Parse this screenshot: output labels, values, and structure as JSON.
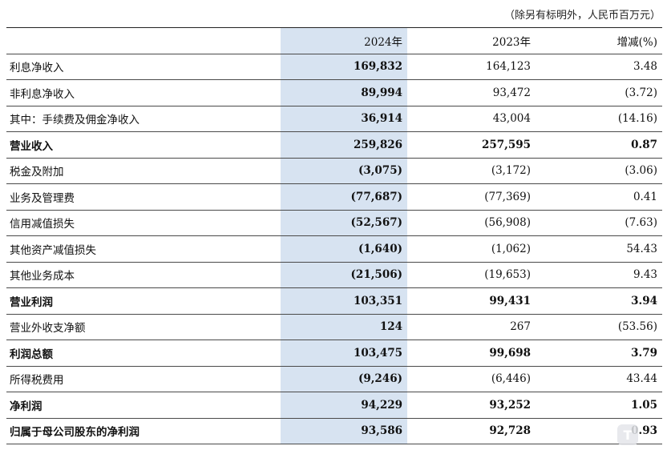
{
  "unit_note": "（除另有标明外，人民币百万元）",
  "headers": {
    "label": "",
    "y2024": "2024年",
    "y2023": "2023年",
    "change": "增减(%)"
  },
  "rows": [
    {
      "label": "利息净收入",
      "y2024": "169,832",
      "y2023": "164,123",
      "change": "3.48",
      "bold": false
    },
    {
      "label": "非利息净收入",
      "y2024": "89,994",
      "y2023": "93,472",
      "change": "(3.72)",
      "bold": false
    },
    {
      "label": "其中：手续费及佣金净收入",
      "y2024": "36,914",
      "y2023": "43,004",
      "change": "(14.16)",
      "bold": false
    },
    {
      "label": "营业收入",
      "y2024": "259,826",
      "y2023": "257,595",
      "change": "0.87",
      "bold": true
    },
    {
      "label": "税金及附加",
      "y2024": "(3,075)",
      "y2023": "(3,172)",
      "change": "(3.06)",
      "bold": false
    },
    {
      "label": "业务及管理费",
      "y2024": "(77,687)",
      "y2023": "(77,369)",
      "change": "0.41",
      "bold": false
    },
    {
      "label": "信用减值损失",
      "y2024": "(52,567)",
      "y2023": "(56,908)",
      "change": "(7.63)",
      "bold": false
    },
    {
      "label": "其他资产减值损失",
      "y2024": "(1,640)",
      "y2023": "(1,062)",
      "change": "54.43",
      "bold": false
    },
    {
      "label": "其他业务成本",
      "y2024": "(21,506)",
      "y2023": "(19,653)",
      "change": "9.43",
      "bold": false
    },
    {
      "label": "营业利润",
      "y2024": "103,351",
      "y2023": "99,431",
      "change": "3.94",
      "bold": true
    },
    {
      "label": "营业外收支净额",
      "y2024": "124",
      "y2023": "267",
      "change": "(53.56)",
      "bold": false
    },
    {
      "label": "利润总额",
      "y2024": "103,475",
      "y2023": "99,698",
      "change": "3.79",
      "bold": true
    },
    {
      "label": "所得税费用",
      "y2024": "(9,246)",
      "y2023": "(6,446)",
      "change": "43.44",
      "bold": false
    },
    {
      "label": "净利润",
      "y2024": "94,229",
      "y2023": "93,252",
      "change": "1.05",
      "bold": true
    },
    {
      "label": "归属于母公司股东的净利润",
      "y2024": "93,586",
      "y2023": "92,728",
      "change": "0.93",
      "bold": true
    }
  ],
  "watermark": {
    "icon": "app-logo-icon",
    "text": "T"
  },
  "colors": {
    "highlight_column": "#d7e3f1",
    "rule": "#4a4a4a"
  }
}
